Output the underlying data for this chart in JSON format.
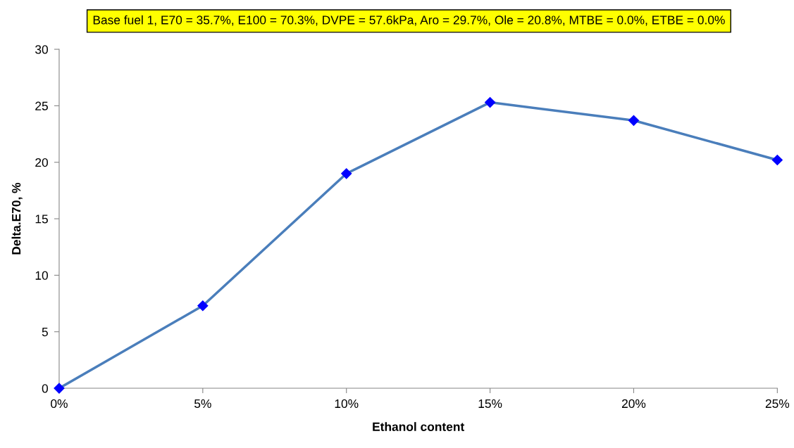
{
  "chart_data": {
    "type": "line",
    "title": "Base fuel 1, E70 = 35.7%, E100 = 70.3%, DVPE = 57.6kPa, Aro = 29.7%, Ole = 20.8%, MTBE = 0.0%, ETBE = 0.0%",
    "xlabel": "Ethanol content",
    "ylabel": "Delta.E70, %",
    "categories": [
      "0%",
      "5%",
      "10%",
      "15%",
      "20%",
      "25%"
    ],
    "series": [
      {
        "color": "#4a7ebb",
        "values": [
          0,
          7.3,
          19.0,
          25.3,
          23.7,
          20.2
        ]
      }
    ],
    "ylim": [
      0,
      30
    ],
    "yticks": [
      0,
      5,
      10,
      15,
      20,
      25,
      30
    ],
    "marker": "diamond",
    "line_style": "solid",
    "grid": false,
    "legend": false
  }
}
